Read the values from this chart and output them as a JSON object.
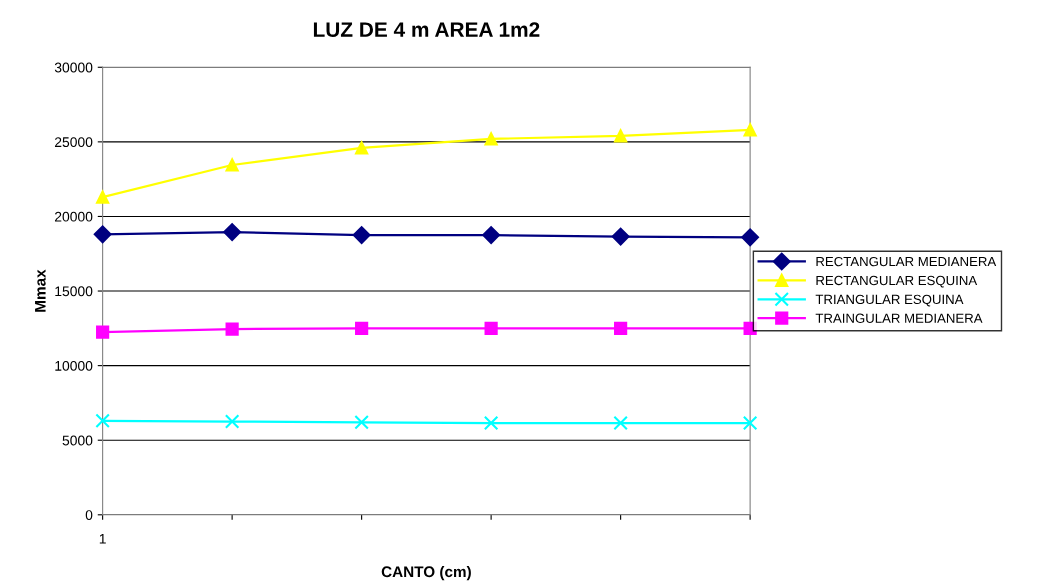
{
  "chart_data": {
    "type": "line",
    "title": "LUZ DE 4 m AREA 1m2",
    "xlabel": "CANTO (cm)",
    "ylabel": "Mmax",
    "categories": [
      "1",
      null,
      null,
      null,
      null,
      null
    ],
    "series": [
      {
        "name": "RECTANGULAR MEDIANERA",
        "color": "#000080",
        "marker": "diamond",
        "values": [
          18800,
          18950,
          18750,
          18750,
          18650,
          18600
        ]
      },
      {
        "name": "RECTANGULAR ESQUINA",
        "color": "#ffff00",
        "marker": "triangle",
        "values": [
          21300,
          23450,
          24600,
          25200,
          25400,
          25800
        ]
      },
      {
        "name": "TRIANGULAR ESQUINA",
        "color": "#00ffff",
        "marker": "cross",
        "values": [
          6300,
          6250,
          6200,
          6150,
          6150,
          6150
        ]
      },
      {
        "name": "TRAINGULAR MEDIANERA",
        "color": "#ff00ff",
        "marker": "square",
        "values": [
          12250,
          12450,
          12500,
          12500,
          12500,
          12500
        ]
      }
    ],
    "ylim": [
      0,
      30000
    ],
    "yticks": [
      0,
      5000,
      10000,
      15000,
      20000,
      25000,
      30000
    ],
    "grid": "y",
    "legend": "right"
  }
}
